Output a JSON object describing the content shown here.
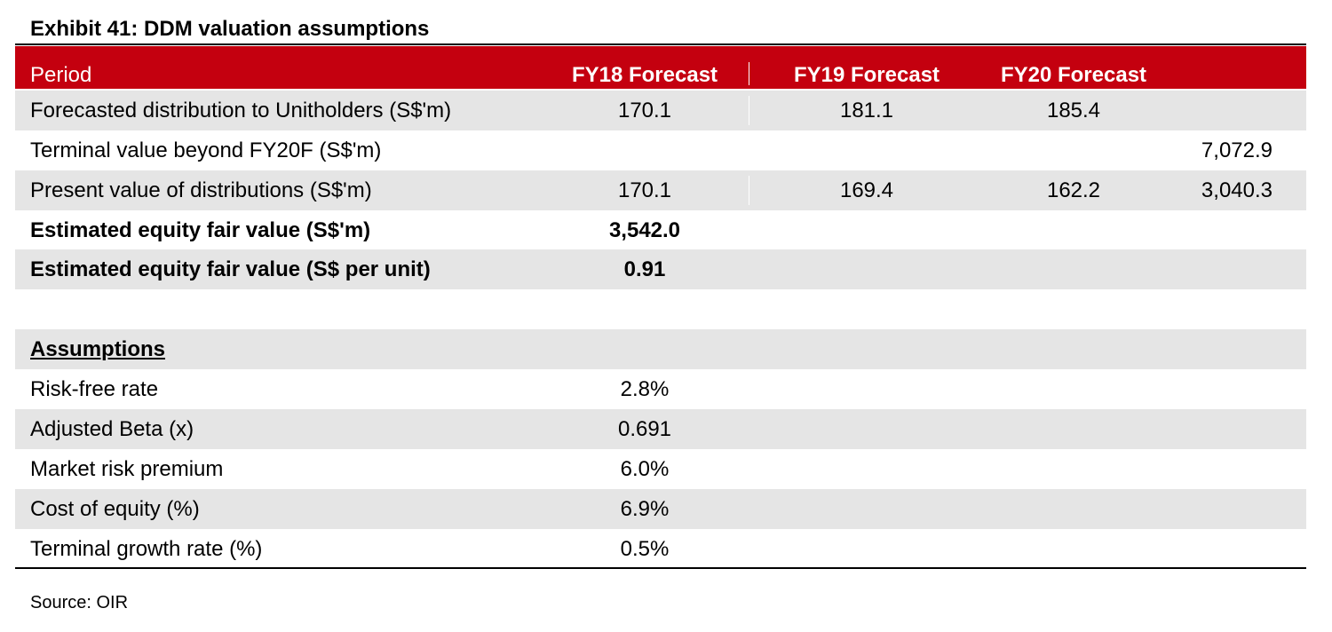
{
  "title": "Exhibit 41: DDM valuation assumptions",
  "header": {
    "period": "Period",
    "fy18": "FY18 Forecast",
    "fy19": "FY19 Forecast",
    "fy20": "FY20 Forecast"
  },
  "rows": [
    {
      "label": "Forecasted distribution to Unitholders (S$'m)",
      "fy18": "170.1",
      "fy19": "181.1",
      "fy20": "185.4",
      "terminal": ""
    },
    {
      "label": "Terminal value beyond FY20F (S$'m)",
      "fy18": "",
      "fy19": "",
      "fy20": "",
      "terminal": "7,072.9"
    },
    {
      "label": "Present value of distributions (S$'m)",
      "fy18": "170.1",
      "fy19": "169.4",
      "fy20": "162.2",
      "terminal": "3,040.3"
    },
    {
      "label": "Estimated equity fair value (S$'m)",
      "fy18": "3,542.0"
    },
    {
      "label": "Estimated equity fair value (S$ per unit)",
      "fy18": "0.91"
    }
  ],
  "assumptions": {
    "heading": "Assumptions",
    "items": [
      {
        "label": "Risk-free rate",
        "value": "2.8%"
      },
      {
        "label": "Adjusted Beta (x)",
        "value": "0.691"
      },
      {
        "label": "Market risk premium",
        "value": "6.0%"
      },
      {
        "label": "Cost of equity (%)",
        "value": "6.9%"
      },
      {
        "label": "Terminal growth rate (%)",
        "value": "0.5%"
      }
    ]
  },
  "source": "Source: OIR",
  "colors": {
    "header_bg": "#c4000f",
    "row_shade": "#e5e5e5"
  }
}
